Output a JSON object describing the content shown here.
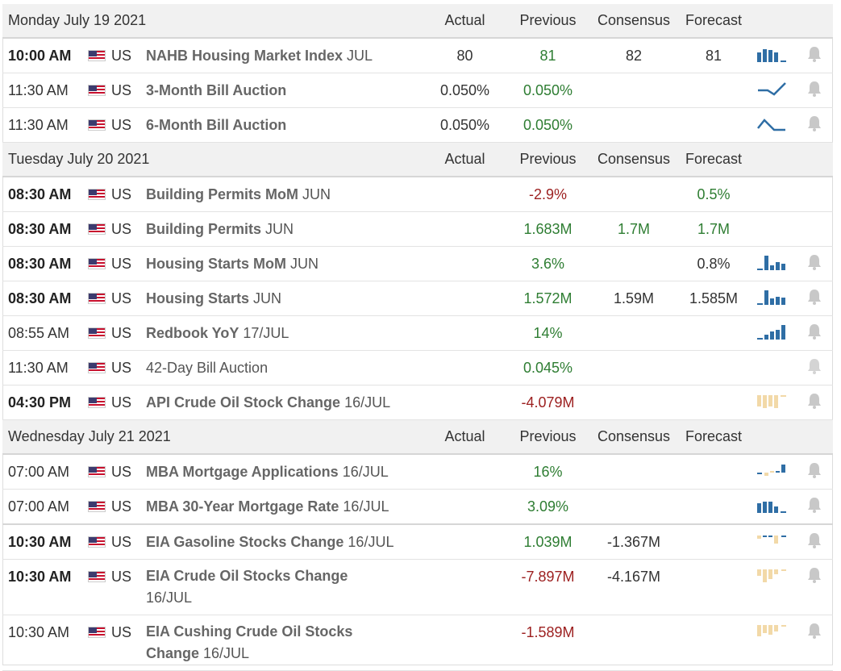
{
  "columns": {
    "actual": "Actual",
    "previous": "Previous",
    "consensus": "Consensus",
    "forecast": "Forecast"
  },
  "days": [
    {
      "label": "Monday July 19 2021",
      "events": [
        {
          "time": "10:00 AM",
          "country": "US",
          "name": "NAHB Housing Market Index",
          "period": "JUL",
          "actual": "80",
          "previous": "81",
          "consensus": "82",
          "forecast": "81",
          "chart_icon": "mini-bar-chart-blue",
          "bell_icon": "bell-icon"
        },
        {
          "time": "11:30 AM",
          "country": "US",
          "name": "3-Month Bill Auction",
          "period": "",
          "actual": "0.050%",
          "previous": "0.050%",
          "consensus": "",
          "forecast": "",
          "chart_icon": "mini-line-chart-rising",
          "bell_icon": "bell-icon"
        },
        {
          "time": "11:30 AM",
          "country": "US",
          "name": "6-Month Bill Auction",
          "period": "",
          "actual": "0.050%",
          "previous": "0.050%",
          "consensus": "",
          "forecast": "",
          "chart_icon": "mini-line-chart-peak",
          "bell_icon": "bell-icon"
        }
      ]
    },
    {
      "label": "Tuesday July 20 2021",
      "events": [
        {
          "time": "08:30 AM",
          "country": "US",
          "name": "Building Permits MoM",
          "period": "JUN",
          "actual": "",
          "previous": "-2.9%",
          "consensus": "",
          "forecast": "0.5%"
        },
        {
          "time": "08:30 AM",
          "country": "US",
          "name": "Building Permits",
          "period": "JUN",
          "actual": "",
          "previous": "1.683M",
          "consensus": "1.7M",
          "forecast": "1.7M"
        },
        {
          "time": "08:30 AM",
          "country": "US",
          "name": "Housing Starts MoM",
          "period": "JUN",
          "actual": "",
          "previous": "3.6%",
          "consensus": "",
          "forecast": "0.8%",
          "chart_icon": "mini-bar-chart-blue",
          "bell_icon": "bell-icon"
        },
        {
          "time": "08:30 AM",
          "country": "US",
          "name": "Housing Starts",
          "period": "JUN",
          "actual": "",
          "previous": "1.572M",
          "consensus": "1.59M",
          "forecast": "1.585M",
          "chart_icon": "mini-bar-chart-blue",
          "bell_icon": "bell-icon"
        },
        {
          "time": "08:55 AM",
          "country": "US",
          "name": "Redbook YoY",
          "period": "17/JUL",
          "actual": "",
          "previous": "14%",
          "consensus": "",
          "forecast": "",
          "chart_icon": "mini-bar-chart-blue",
          "bell_icon": "bell-icon"
        },
        {
          "time": "11:30 AM",
          "country": "US",
          "name": "42-Day Bill Auction",
          "period": "",
          "actual": "",
          "previous": "0.045%",
          "consensus": "",
          "forecast": "",
          "bell_icon": "bell-icon"
        },
        {
          "time": "04:30 PM",
          "country": "US",
          "name": "API Crude Oil Stock Change",
          "period": "16/JUL",
          "actual": "",
          "previous": "-4.079M",
          "consensus": "",
          "forecast": "",
          "chart_icon": "mini-bar-chart-tan",
          "bell_icon": "bell-icon"
        }
      ]
    },
    {
      "label": "Wednesday July 21 2021",
      "events": [
        {
          "time": "07:00 AM",
          "country": "US",
          "name": "MBA Mortgage Applications",
          "period": "16/JUL",
          "actual": "",
          "previous": "16%",
          "consensus": "",
          "forecast": "",
          "chart_icon": "mini-bar-chart-mixed",
          "bell_icon": "bell-icon"
        },
        {
          "time": "07:00 AM",
          "country": "US",
          "name": "MBA 30-Year Mortgage Rate",
          "period": "16/JUL",
          "actual": "",
          "previous": "3.09%",
          "consensus": "",
          "forecast": "",
          "chart_icon": "mini-bar-chart-blue",
          "bell_icon": "bell-icon"
        },
        {
          "time": "10:30 AM",
          "country": "US",
          "name": "EIA Gasoline Stocks Change",
          "period": "16/JUL",
          "actual": "",
          "previous": "1.039M",
          "consensus": "-1.367M",
          "forecast": "",
          "chart_icon": "mini-bar-chart-mixed",
          "bell_icon": "bell-icon"
        },
        {
          "time": "10:30 AM",
          "country": "US",
          "name": "EIA Crude Oil Stocks Change",
          "period": "16/JUL",
          "actual": "",
          "previous": "-7.897M",
          "consensus": "-4.167M",
          "forecast": "",
          "chart_icon": "mini-bar-chart-tan",
          "bell_icon": "bell-icon"
        },
        {
          "time": "10:30 AM",
          "country": "US",
          "name": "EIA Cushing Crude Oil Stocks",
          "name_line2": "Change",
          "period": "16/JUL",
          "actual": "",
          "previous": "-1.589M",
          "consensus": "",
          "forecast": "",
          "chart_icon": "mini-bar-chart-tan",
          "bell_icon": "bell-icon"
        }
      ]
    }
  ],
  "colors": {
    "positive": "#2e7d32",
    "negative": "#9c1f1f",
    "chart_blue": "#2f6ea5",
    "chart_tan": "#f2d9a8",
    "bell": "#c8c8c8"
  }
}
